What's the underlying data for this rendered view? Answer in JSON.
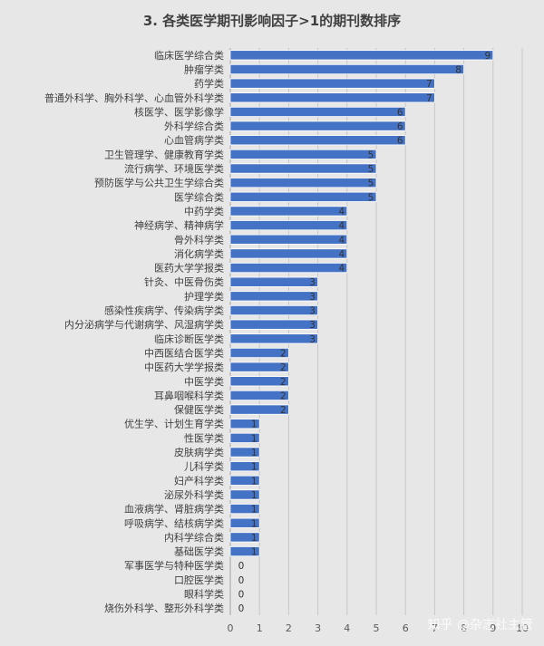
{
  "chart_data": {
    "type": "bar",
    "orientation": "horizontal",
    "title": "3. 各类医学期刊影响因子>1的期刊数排序",
    "categories": [
      "临床医学综合类",
      "肿瘤学类",
      "药学类",
      "普通外科学、胸外科学、心血管外科学类",
      "核医学、医学影像学",
      "外科学综合类",
      "心血管病学类",
      "卫生管理学、健康教育学类",
      "流行病学、环境医学类",
      "预防医学与公共卫生学综合类",
      "医学综合类",
      "中药学类",
      "神经病学、精神病学",
      "骨外科学类",
      "消化病学类",
      "医药大学学报类",
      "针灸、中医骨伤类",
      "护理学类",
      "感染性疾病学、传染病学类",
      "内分泌病学与代谢病学、风湿病学类",
      "临床诊断医学类",
      "中西医结合医学类",
      "中医药大学学报类",
      "中医学类",
      "耳鼻咽喉科学类",
      "保健医学类",
      "优生学、计划生育学类",
      "性医学类",
      "皮肤病学类",
      "儿科学类",
      "妇产科学类",
      "泌尿外科学类",
      "血液病学、肾脏病学类",
      "呼吸病学、结核病学类",
      "内科学综合类",
      "基础医学类",
      "军事医学与特种医学类",
      "口腔医学类",
      "眼科学类",
      "烧伤外科学、整形外科学类"
    ],
    "values": [
      9,
      8,
      7,
      7,
      6,
      6,
      6,
      5,
      5,
      5,
      5,
      4,
      4,
      4,
      4,
      4,
      3,
      3,
      3,
      3,
      3,
      2,
      2,
      2,
      2,
      2,
      1,
      1,
      1,
      1,
      1,
      1,
      1,
      1,
      1,
      1,
      0,
      0,
      0,
      0
    ],
    "xlim": [
      0,
      10
    ],
    "xticks": [
      "0",
      "1",
      "2",
      "3",
      "4",
      "5",
      "6",
      "7",
      "8",
      "9",
      "10"
    ],
    "grid": true,
    "legend": "none",
    "bar_color": "#4472c4"
  },
  "watermark": "知乎 @杂志社主管"
}
